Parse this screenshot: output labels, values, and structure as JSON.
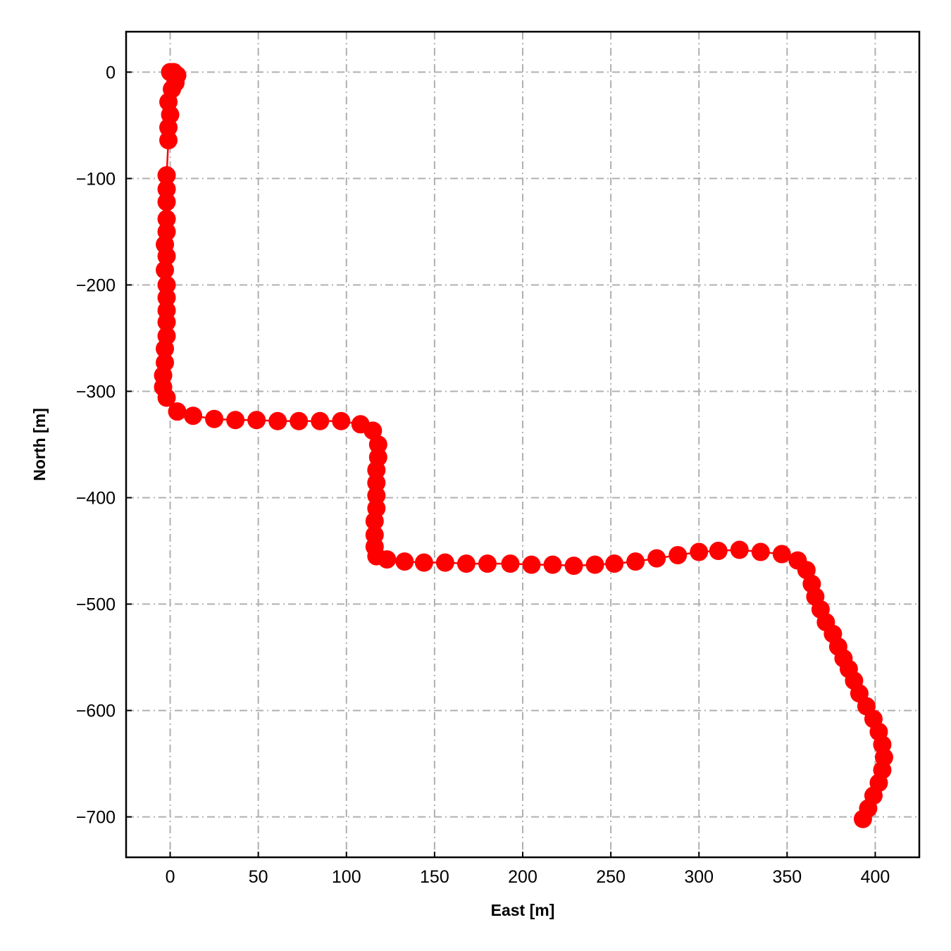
{
  "chart_data": {
    "type": "line",
    "title": "",
    "xlabel": "East [m]",
    "ylabel": "North [m]",
    "xlim": [
      -25,
      425
    ],
    "ylim": [
      -738,
      38
    ],
    "xticks": [
      "0",
      "50",
      "100",
      "150",
      "200",
      "250",
      "300",
      "350",
      "400"
    ],
    "yticks": [
      "0",
      "−100",
      "−200",
      "−300",
      "−400",
      "−500",
      "−600",
      "−700"
    ],
    "xtick_values": [
      0,
      50,
      100,
      150,
      200,
      250,
      300,
      350,
      400
    ],
    "ytick_values": [
      0,
      -100,
      -200,
      -300,
      -400,
      -500,
      -600,
      -700
    ],
    "grid": true,
    "legend": "none",
    "series": [
      {
        "color": "#ff0000",
        "marker": "circle",
        "x": [
          2,
          0,
          4,
          3,
          1,
          -1,
          0,
          -1,
          -1,
          -2,
          -2,
          -2,
          -2,
          -2,
          -3,
          -2,
          -3,
          -2,
          -2,
          -2,
          -2,
          -2,
          -3,
          -3,
          -4,
          -4,
          -2,
          4,
          13,
          25,
          37,
          49,
          61,
          73,
          85,
          97,
          108,
          115,
          118,
          118,
          117,
          117,
          117,
          117,
          116,
          116,
          116,
          117,
          123,
          133,
          144,
          156,
          168,
          180,
          193,
          205,
          217,
          229,
          241,
          252,
          264,
          276,
          288,
          300,
          311,
          323,
          335,
          347,
          356,
          361,
          364,
          366,
          369,
          372,
          376,
          379,
          382,
          385,
          388,
          391,
          395,
          399,
          402,
          404,
          405,
          404,
          402,
          399,
          396,
          393
        ],
        "y": [
          0,
          0,
          -3,
          -10,
          -16,
          -28,
          -40,
          -52,
          -64,
          -97,
          -110,
          -122,
          -138,
          -150,
          -162,
          -173,
          -186,
          -200,
          -212,
          -224,
          -235,
          -248,
          -260,
          -273,
          -285,
          -296,
          -306,
          -319,
          -323,
          -326,
          -327,
          -327,
          -328,
          -328,
          -328,
          -328,
          -331,
          -337,
          -350,
          -362,
          -374,
          -386,
          -398,
          -410,
          -422,
          -435,
          -446,
          -455,
          -458,
          -460,
          -461,
          -461,
          -462,
          -462,
          -462,
          -463,
          -463,
          -464,
          -463,
          -462,
          -460,
          -457,
          -454,
          -451,
          -450,
          -449,
          -451,
          -453,
          -459,
          -468,
          -481,
          -493,
          -505,
          -517,
          -528,
          -540,
          -551,
          -561,
          -572,
          -584,
          -596,
          -608,
          -620,
          -632,
          -644,
          -656,
          -668,
          -680,
          -692,
          -702
        ]
      }
    ]
  }
}
